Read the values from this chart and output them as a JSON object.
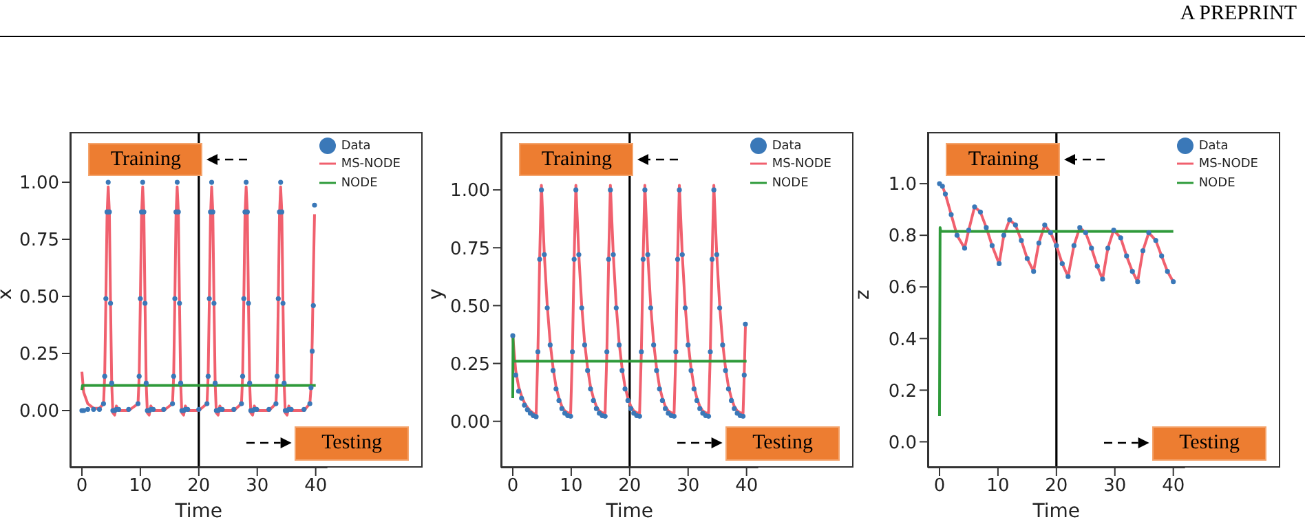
{
  "chart_data": [
    {
      "type": "line",
      "xlabel": "Time",
      "ylabel": "x",
      "xlim": [
        -2,
        42
      ],
      "ylim": [
        -0.25,
        1.22
      ],
      "xticks": [
        0,
        10,
        20,
        30,
        40
      ],
      "yticks": [
        {
          "value": 0,
          "label": "0.00"
        },
        {
          "value": 0.25,
          "label": "0.25"
        },
        {
          "value": 0.5,
          "label": "0.50"
        },
        {
          "value": 0.75,
          "label": "0.75"
        },
        {
          "value": 1,
          "label": "1.00"
        }
      ],
      "legend": "top right",
      "grid": false,
      "annotations": [
        "Training",
        "Testing",
        "A PREPRINT"
      ],
      "ref_lines": [
        {
          "axis": "x",
          "value": 20,
          "color": "#000000"
        }
      ],
      "series": [
        {
          "name": "Data",
          "type": "scatter",
          "marker": "circle",
          "color": "#3a78b8",
          "x": [
            0,
            0.3,
            1,
            2,
            3,
            3.7,
            3.9,
            4.1,
            4.3,
            4.5,
            4.7,
            4.9,
            5.1,
            5.3,
            5.6,
            5.9,
            6.3,
            8,
            9.6,
            9.8,
            10.0,
            10.2,
            10.4,
            10.6,
            10.8,
            11.0,
            11.2,
            11.5,
            11.8,
            12.2,
            14,
            15.5,
            15.7,
            15.9,
            16.1,
            16.3,
            16.5,
            16.7,
            16.9,
            17.1,
            17.4,
            17.7,
            18.1,
            20,
            21.4,
            21.6,
            21.8,
            22.0,
            22.2,
            22.4,
            22.6,
            22.8,
            23.0,
            23.3,
            23.6,
            24.0,
            26,
            27.3,
            27.5,
            27.7,
            27.9,
            28.1,
            28.3,
            28.5,
            28.7,
            28.9,
            29.2,
            29.5,
            29.9,
            32,
            33.2,
            33.4,
            33.6,
            33.8,
            34.0,
            34.2,
            34.4,
            34.6,
            34.8,
            35.1,
            35.4,
            35.8,
            38,
            39.0,
            39.2,
            39.4,
            39.6,
            39.8
          ],
          "values": [
            0.0,
            0.0,
            0.005,
            0.005,
            0.005,
            0.03,
            0.15,
            0.49,
            0.87,
            1.0,
            0.87,
            0.47,
            0.12,
            0.0,
            0.0,
            0.005,
            0.005,
            0.005,
            0.03,
            0.15,
            0.49,
            0.87,
            1.0,
            0.87,
            0.47,
            0.12,
            0.0,
            0.0,
            0.005,
            0.005,
            0.005,
            0.03,
            0.15,
            0.49,
            0.87,
            1.0,
            0.87,
            0.47,
            0.12,
            0.0,
            0.0,
            0.005,
            0.005,
            0.005,
            0.03,
            0.15,
            0.49,
            0.87,
            1.0,
            0.87,
            0.47,
            0.12,
            0.0,
            0.0,
            0.005,
            0.005,
            0.005,
            0.03,
            0.15,
            0.49,
            0.87,
            1.0,
            0.87,
            0.47,
            0.12,
            0.0,
            0.0,
            0.005,
            0.005,
            0.005,
            0.03,
            0.15,
            0.49,
            0.87,
            1.0,
            0.87,
            0.47,
            0.12,
            0.0,
            0.0,
            0.005,
            0.005,
            0.005,
            0.03,
            0.1,
            0.26,
            0.46,
            0.9
          ]
        },
        {
          "name": "MS-NODE",
          "type": "line",
          "color": "#f0606e",
          "x": [
            0,
            0.3,
            1,
            2,
            3,
            3.7,
            3.9,
            4.1,
            4.3,
            4.5,
            4.7,
            4.9,
            5.1,
            5.3,
            5.6,
            5.9,
            6.3,
            8,
            9.6,
            9.8,
            10.0,
            10.2,
            10.4,
            10.6,
            10.8,
            11.0,
            11.2,
            11.5,
            11.8,
            12.2,
            14,
            15.5,
            15.7,
            15.9,
            16.1,
            16.3,
            16.5,
            16.7,
            16.9,
            17.1,
            17.4,
            17.7,
            18.1,
            20,
            21.4,
            21.6,
            21.8,
            22.0,
            22.2,
            22.4,
            22.6,
            22.8,
            23.0,
            23.3,
            23.6,
            24.0,
            26,
            27.3,
            27.5,
            27.7,
            27.9,
            28.1,
            28.3,
            28.5,
            28.7,
            28.9,
            29.2,
            29.5,
            29.9,
            32,
            33.2,
            33.4,
            33.6,
            33.8,
            34.0,
            34.2,
            34.4,
            34.6,
            34.8,
            35.1,
            35.4,
            35.8,
            38,
            39.0,
            39.2,
            39.4,
            39.6,
            39.8
          ],
          "values": [
            0.17,
            0.08,
            0.03,
            0.01,
            0.01,
            0.03,
            0.15,
            0.48,
            0.85,
            0.98,
            0.87,
            0.47,
            0.12,
            -0.01,
            -0.02,
            0.02,
            0.0,
            0.0,
            0.03,
            0.15,
            0.48,
            0.85,
            0.98,
            0.87,
            0.47,
            0.12,
            -0.01,
            -0.02,
            0.02,
            0.0,
            0.0,
            0.03,
            0.15,
            0.48,
            0.85,
            0.98,
            0.87,
            0.47,
            0.12,
            -0.01,
            -0.02,
            0.02,
            0.0,
            0.0,
            0.03,
            0.15,
            0.48,
            0.85,
            0.98,
            0.87,
            0.47,
            0.12,
            -0.01,
            -0.02,
            0.02,
            0.0,
            0.0,
            0.03,
            0.15,
            0.48,
            0.85,
            0.98,
            0.87,
            0.47,
            0.12,
            -0.01,
            -0.02,
            0.02,
            0.0,
            0.0,
            0.03,
            0.15,
            0.48,
            0.85,
            0.98,
            0.87,
            0.47,
            0.12,
            -0.01,
            -0.02,
            0.02,
            0.0,
            0.0,
            0.03,
            0.1,
            0.3,
            0.6,
            0.86
          ]
        },
        {
          "name": "NODE",
          "color": "#2e9a3a",
          "x": [
            0,
            0.1,
            40
          ],
          "values": [
            0.09,
            0.11,
            0.11
          ]
        }
      ]
    },
    {
      "type": "line",
      "xlabel": "Time",
      "ylabel": "y",
      "xlim": [
        -2,
        42
      ],
      "ylim": [
        -0.2,
        1.25
      ],
      "xticks": [
        0,
        10,
        20,
        30,
        40
      ],
      "yticks": [
        {
          "value": 0,
          "label": "0.00"
        },
        {
          "value": 0.25,
          "label": "0.25"
        },
        {
          "value": 0.5,
          "label": "0.50"
        },
        {
          "value": 0.75,
          "label": "0.75"
        },
        {
          "value": 1,
          "label": "1.00"
        }
      ],
      "legend": "top right",
      "grid": false,
      "annotations": [
        "Training",
        "Testing"
      ],
      "ref_lines": [
        {
          "axis": "x",
          "value": 20,
          "color": "#000000"
        }
      ],
      "series": [
        {
          "name": "Data",
          "type": "scatter",
          "marker": "circle",
          "color": "#3a78b8",
          "x": [
            0,
            0.5,
            1,
            1.5,
            2,
            2.5,
            3,
            3.5,
            4.0,
            4.3,
            4.6,
            4.9,
            5.4,
            5.9,
            6.4,
            6.9,
            7.4,
            7.9,
            8.4,
            8.9,
            9.4,
            9.9,
            10.2,
            10.5,
            10.8,
            11.3,
            11.8,
            12.3,
            12.8,
            13.3,
            13.8,
            14.3,
            14.8,
            15.3,
            15.8,
            16.1,
            16.4,
            16.7,
            17.2,
            17.7,
            18.2,
            18.7,
            19.2,
            19.7,
            20.2,
            20.7,
            21.2,
            21.7,
            22.0,
            22.3,
            22.6,
            23.1,
            23.6,
            24.1,
            24.6,
            25.1,
            25.6,
            26.1,
            26.6,
            27.1,
            27.6,
            27.9,
            28.2,
            28.5,
            29.0,
            29.5,
            30.0,
            30.5,
            31.0,
            31.5,
            32.0,
            32.5,
            33.0,
            33.5,
            33.8,
            34.1,
            34.4,
            34.9,
            35.4,
            35.9,
            36.4,
            36.9,
            37.4,
            37.9,
            38.4,
            38.9,
            39.4,
            39.6,
            39.8
          ],
          "values": [
            0.37,
            0.2,
            0.13,
            0.1,
            0.07,
            0.05,
            0.035,
            0.025,
            0.02,
            0.3,
            0.7,
            1.0,
            0.72,
            0.49,
            0.33,
            0.22,
            0.14,
            0.09,
            0.055,
            0.035,
            0.025,
            0.022,
            0.3,
            0.7,
            1.0,
            0.72,
            0.49,
            0.33,
            0.22,
            0.14,
            0.09,
            0.055,
            0.035,
            0.025,
            0.022,
            0.3,
            0.7,
            1.0,
            0.72,
            0.49,
            0.33,
            0.22,
            0.14,
            0.09,
            0.055,
            0.035,
            0.025,
            0.022,
            0.3,
            0.7,
            1.0,
            0.72,
            0.49,
            0.33,
            0.22,
            0.14,
            0.09,
            0.055,
            0.035,
            0.025,
            0.022,
            0.3,
            0.7,
            1.0,
            0.72,
            0.49,
            0.33,
            0.22,
            0.14,
            0.09,
            0.055,
            0.035,
            0.025,
            0.022,
            0.3,
            0.7,
            1.0,
            0.72,
            0.49,
            0.33,
            0.22,
            0.14,
            0.09,
            0.055,
            0.035,
            0.025,
            0.022,
            0.2,
            0.42
          ]
        },
        {
          "name": "MS-NODE",
          "type": "line",
          "color": "#f0606e",
          "x": [
            0,
            0.5,
            1,
            1.5,
            2,
            2.5,
            3,
            3.5,
            4.0,
            4.3,
            4.6,
            4.9,
            5.4,
            5.9,
            6.4,
            6.9,
            7.4,
            7.9,
            8.4,
            8.9,
            9.4,
            9.9,
            10.2,
            10.5,
            10.8,
            11.3,
            11.8,
            12.3,
            12.8,
            13.3,
            13.8,
            14.3,
            14.8,
            15.3,
            15.8,
            16.1,
            16.4,
            16.7,
            17.2,
            17.7,
            18.2,
            18.7,
            19.2,
            19.7,
            20.2,
            20.7,
            21.2,
            21.7,
            22.0,
            22.3,
            22.6,
            23.1,
            23.6,
            24.1,
            24.6,
            25.1,
            25.6,
            26.1,
            26.6,
            27.1,
            27.6,
            27.9,
            28.2,
            28.5,
            29.0,
            29.5,
            30.0,
            30.5,
            31.0,
            31.5,
            32.0,
            32.5,
            33.0,
            33.5,
            33.8,
            34.1,
            34.4,
            34.9,
            35.4,
            35.9,
            36.4,
            36.9,
            37.4,
            37.9,
            38.4,
            38.9,
            39.4,
            39.6,
            39.8
          ],
          "values": [
            0.37,
            0.22,
            0.15,
            0.11,
            0.08,
            0.06,
            0.045,
            0.035,
            0.03,
            0.3,
            0.7,
            1.02,
            0.72,
            0.5,
            0.34,
            0.23,
            0.15,
            0.1,
            0.065,
            0.045,
            0.037,
            0.035,
            0.3,
            0.7,
            1.02,
            0.72,
            0.5,
            0.34,
            0.23,
            0.15,
            0.1,
            0.065,
            0.045,
            0.037,
            0.035,
            0.3,
            0.7,
            1.02,
            0.72,
            0.5,
            0.34,
            0.23,
            0.15,
            0.1,
            0.065,
            0.045,
            0.037,
            0.035,
            0.3,
            0.7,
            1.02,
            0.72,
            0.5,
            0.34,
            0.23,
            0.15,
            0.1,
            0.065,
            0.045,
            0.037,
            0.035,
            0.3,
            0.7,
            1.02,
            0.72,
            0.5,
            0.34,
            0.23,
            0.15,
            0.1,
            0.065,
            0.045,
            0.037,
            0.035,
            0.3,
            0.7,
            1.02,
            0.72,
            0.5,
            0.34,
            0.23,
            0.15,
            0.1,
            0.065,
            0.045,
            0.037,
            0.035,
            0.2,
            0.41
          ]
        },
        {
          "name": "NODE",
          "color": "#2e9a3a",
          "x": [
            0,
            0.05,
            0.1,
            40
          ],
          "values": [
            0.1,
            0.36,
            0.26,
            0.26
          ]
        }
      ]
    },
    {
      "type": "line",
      "xlabel": "Time",
      "ylabel": "z",
      "xlim": [
        -2,
        42
      ],
      "ylim": [
        -0.1,
        1.2
      ],
      "xticks": [
        0,
        10,
        20,
        30,
        40
      ],
      "yticks": [
        {
          "value": 0,
          "label": "0.0"
        },
        0.2,
        0.4,
        0.6,
        0.8,
        {
          "value": 1,
          "label": "1.0"
        }
      ],
      "legend": "top right",
      "grid": false,
      "annotations": [
        "Training",
        "Testing"
      ],
      "ref_lines": [
        {
          "axis": "x",
          "value": 20,
          "color": "#000000"
        }
      ],
      "series": [
        {
          "name": "Data",
          "type": "scatter",
          "marker": "circle",
          "color": "#3a78b8",
          "x": [
            0,
            0.5,
            1,
            2,
            3,
            4.3,
            5,
            6,
            7,
            8,
            9,
            10.2,
            11,
            12,
            13,
            14,
            15,
            16.1,
            17,
            18,
            19,
            20,
            21,
            22,
            23,
            24,
            25,
            26,
            27,
            27.9,
            28.8,
            29.8,
            31,
            32,
            33,
            33.9,
            34.8,
            35.8,
            37,
            38,
            39,
            40
          ],
          "values": [
            1.0,
            0.99,
            0.96,
            0.88,
            0.8,
            0.75,
            0.82,
            0.91,
            0.89,
            0.83,
            0.76,
            0.69,
            0.8,
            0.86,
            0.84,
            0.78,
            0.71,
            0.66,
            0.77,
            0.84,
            0.81,
            0.76,
            0.69,
            0.64,
            0.76,
            0.83,
            0.81,
            0.75,
            0.68,
            0.63,
            0.75,
            0.82,
            0.79,
            0.72,
            0.66,
            0.62,
            0.74,
            0.81,
            0.78,
            0.72,
            0.66,
            0.62
          ]
        },
        {
          "name": "MS-NODE",
          "type": "line",
          "color": "#f0606e",
          "x": [
            0,
            0.5,
            1,
            2,
            3,
            4.3,
            5,
            6,
            7,
            8,
            9,
            10.2,
            11,
            12,
            13,
            14,
            15,
            16.1,
            17,
            18,
            19,
            20,
            21,
            22,
            23,
            24,
            25,
            26,
            27,
            27.9,
            28.8,
            29.8,
            31,
            32,
            33,
            33.9,
            34.8,
            35.8,
            37,
            38,
            39,
            40
          ],
          "values": [
            1.0,
            0.99,
            0.96,
            0.88,
            0.8,
            0.75,
            0.82,
            0.91,
            0.89,
            0.83,
            0.76,
            0.69,
            0.8,
            0.86,
            0.84,
            0.78,
            0.71,
            0.66,
            0.77,
            0.84,
            0.81,
            0.76,
            0.69,
            0.64,
            0.76,
            0.83,
            0.81,
            0.75,
            0.68,
            0.63,
            0.75,
            0.82,
            0.79,
            0.72,
            0.66,
            0.62,
            0.74,
            0.81,
            0.78,
            0.72,
            0.66,
            0.62
          ]
        },
        {
          "name": "NODE",
          "color": "#2e9a3a",
          "x": [
            0,
            0.1,
            0.2,
            40
          ],
          "values": [
            0.1,
            0.83,
            0.815,
            0.815
          ]
        }
      ]
    }
  ]
}
